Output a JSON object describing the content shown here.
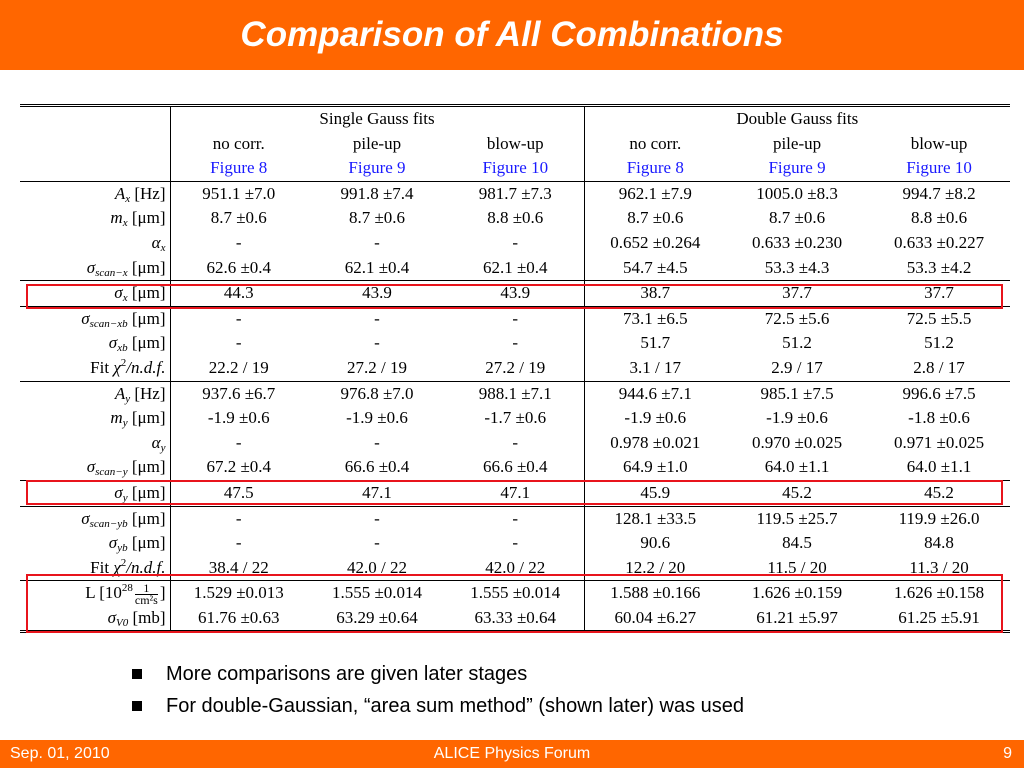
{
  "title": "Comparison of All Combinations",
  "groups": {
    "single": "Single Gauss fits",
    "double": "Double Gauss fits"
  },
  "subheaders": [
    "no corr.",
    "pile-up",
    "blow-up",
    "no corr.",
    "pile-up",
    "blow-up"
  ],
  "figures": [
    "Figure 8",
    "Figure 9",
    "Figure 10",
    "Figure 8",
    "Figure 9",
    "Figure 10"
  ],
  "labels": {
    "Ax": {
      "sym": "A",
      "sub": "x",
      "unit": " [Hz]"
    },
    "mx": {
      "sym": "m",
      "sub": "x",
      "unit": " [μm]"
    },
    "ax": {
      "sym": "α",
      "sub": "x",
      "unit": ""
    },
    "ssx": {
      "sym": "σ",
      "sub": "scan−x",
      "unit": " [μm]"
    },
    "sx": {
      "sym": "σ",
      "sub": "x",
      "unit": " [μm]"
    },
    "ssxb": {
      "sym": "σ",
      "sub": "scan−xb",
      "unit": " [μm]"
    },
    "sxb": {
      "sym": "σ",
      "sub": "xb",
      "unit": " [μm]"
    },
    "fitx": {
      "pre": "Fit ",
      "sym": "χ",
      "sup": "2",
      "post": "/n.d.f."
    },
    "Ay": {
      "sym": "A",
      "sub": "y",
      "unit": " [Hz]"
    },
    "my": {
      "sym": "m",
      "sub": "y",
      "unit": " [μm]"
    },
    "ay": {
      "sym": "α",
      "sub": "y",
      "unit": ""
    },
    "ssy": {
      "sym": "σ",
      "sub": "scan−y",
      "unit": " [μm]"
    },
    "sy": {
      "sym": "σ",
      "sub": "y",
      "unit": " [μm]"
    },
    "ssyb": {
      "sym": "σ",
      "sub": "scan−yb",
      "unit": " [μm]"
    },
    "syb": {
      "sym": "σ",
      "sub": "yb",
      "unit": " [μm]"
    },
    "fity": {
      "pre": "Fit ",
      "sym": "χ",
      "sup": "2",
      "post": "/n.d.f."
    },
    "L": {
      "pre": "L ",
      "bracket": "[10",
      "sup": "28",
      "frac_num": "1",
      "frac_den": "cm²s",
      "close": "]"
    },
    "sV0": {
      "sym": "σ",
      "sub": "V0",
      "unit": " [mb]"
    }
  },
  "rows": {
    "Ax": [
      "951.1 ±7.0",
      "991.8 ±7.4",
      "981.7 ±7.3",
      "962.1 ±7.9",
      "1005.0 ±8.3",
      "994.7 ±8.2"
    ],
    "mx": [
      "8.7 ±0.6",
      "8.7 ±0.6",
      "8.8 ±0.6",
      "8.7 ±0.6",
      "8.7 ±0.6",
      "8.8 ±0.6"
    ],
    "ax": [
      "-",
      "-",
      "-",
      "0.652 ±0.264",
      "0.633 ±0.230",
      "0.633 ±0.227"
    ],
    "ssx": [
      "62.6 ±0.4",
      "62.1 ±0.4",
      "62.1 ±0.4",
      "54.7 ±4.5",
      "53.3 ±4.3",
      "53.3 ±4.2"
    ],
    "sx": [
      "44.3",
      "43.9",
      "43.9",
      "38.7",
      "37.7",
      "37.7"
    ],
    "ssxb": [
      "-",
      "-",
      "-",
      "73.1 ±6.5",
      "72.5 ±5.6",
      "72.5 ±5.5"
    ],
    "sxb": [
      "-",
      "-",
      "-",
      "51.7",
      "51.2",
      "51.2"
    ],
    "fitx": [
      "22.2 / 19",
      "27.2 / 19",
      "27.2 / 19",
      "3.1 / 17",
      "2.9 / 17",
      "2.8 / 17"
    ],
    "Ay": [
      "937.6 ±6.7",
      "976.8 ±7.0",
      "988.1 ±7.1",
      "944.6 ±7.1",
      "985.1 ±7.5",
      "996.6 ±7.5"
    ],
    "my": [
      "-1.9 ±0.6",
      "-1.9 ±0.6",
      "-1.7 ±0.6",
      "-1.9 ±0.6",
      "-1.9 ±0.6",
      "-1.8 ±0.6"
    ],
    "ay": [
      "-",
      "-",
      "-",
      "0.978 ±0.021",
      "0.970 ±0.025",
      "0.971 ±0.025"
    ],
    "ssy": [
      "67.2 ±0.4",
      "66.6 ±0.4",
      "66.6 ±0.4",
      "64.9 ±1.0",
      "64.0 ±1.1",
      "64.0 ±1.1"
    ],
    "sy": [
      "47.5",
      "47.1",
      "47.1",
      "45.9",
      "45.2",
      "45.2"
    ],
    "ssyb": [
      "-",
      "-",
      "-",
      "128.1 ±33.5",
      "119.5 ±25.7",
      "119.9 ±26.0"
    ],
    "syb": [
      "-",
      "-",
      "-",
      "90.6",
      "84.5",
      "84.8"
    ],
    "fity": [
      "38.4 / 22",
      "42.0 / 22",
      "42.0 / 22",
      "12.2 / 20",
      "11.5 / 20",
      "11.3 / 20"
    ],
    "L": [
      "1.529 ±0.013",
      "1.555 ±0.014",
      "1.555 ±0.014",
      "1.588 ±0.166",
      "1.626 ±0.159",
      "1.626 ±0.158"
    ],
    "sV0": [
      "61.76 ±0.63",
      "63.29 ±0.64",
      "63.33 ±0.64",
      "60.04 ±6.27",
      "61.21 ±5.97",
      "61.25 ±5.91"
    ]
  },
  "bullets": [
    "More comparisons are given later stages",
    "For double-Gaussian, “area sum method” (shown later) was used"
  ],
  "footer": {
    "date": "Sep. 01, 2010",
    "event": "ALICE Physics Forum",
    "page": "9"
  },
  "colors": {
    "banner": "#ff6600",
    "figure_link": "#1a1aff",
    "highlight_box": "#e8141c"
  }
}
